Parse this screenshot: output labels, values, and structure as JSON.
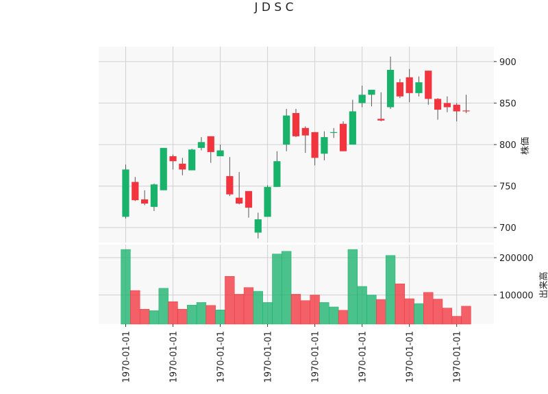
{
  "chart_data": [
    {
      "type": "candlestick",
      "title": "J D S C",
      "ylabel": "株価",
      "ylim": [
        682,
        918
      ],
      "yticks": [
        700,
        750,
        800,
        850,
        900
      ],
      "grid": true,
      "colors": {
        "up": "#19b26b",
        "down": "#f2343e"
      },
      "x_tick_labels": [
        "1970-01-01",
        "1970-01-01",
        "1970-01-01",
        "1970-01-01",
        "1970-01-01",
        "1970-01-01",
        "1970-01-01",
        "1970-01-01"
      ],
      "candles": [
        {
          "open": 713,
          "high": 776,
          "low": 711,
          "close": 770
        },
        {
          "open": 755,
          "high": 761,
          "low": 732,
          "close": 733
        },
        {
          "open": 734,
          "high": 745,
          "low": 727,
          "close": 729
        },
        {
          "open": 725,
          "high": 753,
          "low": 720,
          "close": 752
        },
        {
          "open": 745,
          "high": 796,
          "low": 745,
          "close": 796
        },
        {
          "open": 786,
          "high": 788,
          "low": 770,
          "close": 780
        },
        {
          "open": 777,
          "high": 784,
          "low": 763,
          "close": 770
        },
        {
          "open": 769,
          "high": 795,
          "low": 769,
          "close": 794
        },
        {
          "open": 796,
          "high": 809,
          "low": 793,
          "close": 803
        },
        {
          "open": 810,
          "high": 810,
          "low": 778,
          "close": 791
        },
        {
          "open": 786,
          "high": 800,
          "low": 786,
          "close": 793
        },
        {
          "open": 762,
          "high": 785,
          "low": 738,
          "close": 740
        },
        {
          "open": 736,
          "high": 767,
          "low": 728,
          "close": 729
        },
        {
          "open": 744,
          "high": 744,
          "low": 712,
          "close": 724
        },
        {
          "open": 694,
          "high": 718,
          "low": 687,
          "close": 710
        },
        {
          "open": 713,
          "high": 751,
          "low": 713,
          "close": 749
        },
        {
          "open": 749,
          "high": 792,
          "low": 749,
          "close": 780
        },
        {
          "open": 800,
          "high": 843,
          "low": 792,
          "close": 835
        },
        {
          "open": 838,
          "high": 843,
          "low": 809,
          "close": 810
        },
        {
          "open": 820,
          "high": 822,
          "low": 790,
          "close": 811
        },
        {
          "open": 815,
          "high": 815,
          "low": 775,
          "close": 784
        },
        {
          "open": 789,
          "high": 816,
          "low": 781,
          "close": 809
        },
        {
          "open": 814,
          "high": 820,
          "low": 808,
          "close": 815
        },
        {
          "open": 825,
          "high": 828,
          "low": 792,
          "close": 792
        },
        {
          "open": 800,
          "high": 854,
          "low": 800,
          "close": 840
        },
        {
          "open": 850,
          "high": 871,
          "low": 845,
          "close": 860
        },
        {
          "open": 860,
          "high": 866,
          "low": 846,
          "close": 866
        },
        {
          "open": 831,
          "high": 863,
          "low": 828,
          "close": 829
        },
        {
          "open": 845,
          "high": 906,
          "low": 843,
          "close": 890
        },
        {
          "open": 875,
          "high": 879,
          "low": 856,
          "close": 858
        },
        {
          "open": 881,
          "high": 891,
          "low": 851,
          "close": 862
        },
        {
          "open": 862,
          "high": 882,
          "low": 858,
          "close": 875
        },
        {
          "open": 889,
          "high": 889,
          "low": 848,
          "close": 855
        },
        {
          "open": 855,
          "high": 856,
          "low": 830,
          "close": 842
        },
        {
          "open": 850,
          "high": 858,
          "low": 839,
          "close": 845
        },
        {
          "open": 848,
          "high": 850,
          "low": 828,
          "close": 840
        },
        {
          "open": 841,
          "high": 860,
          "low": 838,
          "close": 840
        }
      ]
    },
    {
      "type": "bar",
      "ylabel": "出来高",
      "ylim": [
        22000,
        235000
      ],
      "yticks": [
        100000,
        200000
      ],
      "grid": true,
      "values": [
        222000,
        112000,
        62000,
        58000,
        118000,
        82000,
        62000,
        73000,
        80000,
        72000,
        60000,
        150000,
        102000,
        120000,
        110000,
        80000,
        210000,
        217000,
        102000,
        85000,
        100000,
        80000,
        68000,
        59000,
        222000,
        123000,
        100000,
        88000,
        206000,
        130000,
        90000,
        77000,
        107000,
        89000,
        65000,
        43000,
        70000
      ]
    }
  ]
}
